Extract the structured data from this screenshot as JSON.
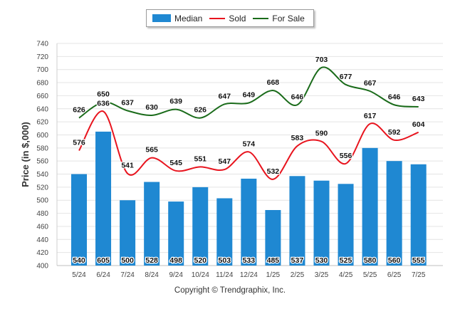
{
  "legend": {
    "median_label": "Median",
    "sold_label": "Sold",
    "forsale_label": "For Sale"
  },
  "colors": {
    "median": "#1f88d2",
    "sold": "#e8141e",
    "forsale": "#1a6b1a"
  },
  "copyright": "Copyright © Trendgraphix, Inc.",
  "chart_data": {
    "type": "bar",
    "ylabel": "Price (in $,000)",
    "ylim": [
      400,
      740
    ],
    "yticks": [
      400,
      420,
      440,
      460,
      480,
      500,
      520,
      540,
      560,
      580,
      600,
      620,
      640,
      660,
      680,
      700,
      720,
      740
    ],
    "categories": [
      "5/24",
      "6/24",
      "7/24",
      "8/24",
      "9/24",
      "10/24",
      "11/24",
      "12/24",
      "1/25",
      "2/25",
      "3/25",
      "4/25",
      "5/25",
      "6/25",
      "7/25"
    ],
    "series": [
      {
        "name": "Median",
        "kind": "bar",
        "values": [
          540,
          605,
          500,
          528,
          498,
          520,
          503,
          533,
          485,
          537,
          530,
          525,
          580,
          560,
          555
        ]
      },
      {
        "name": "Sold",
        "kind": "line",
        "values": [
          576,
          636,
          541,
          565,
          545,
          551,
          547,
          574,
          532,
          583,
          590,
          556,
          617,
          592,
          604
        ]
      },
      {
        "name": "For Sale",
        "kind": "line",
        "values": [
          626,
          650,
          637,
          630,
          639,
          626,
          647,
          649,
          668,
          646,
          703,
          677,
          667,
          646,
          643
        ]
      }
    ],
    "grid": true,
    "legend_position": "top-center"
  }
}
